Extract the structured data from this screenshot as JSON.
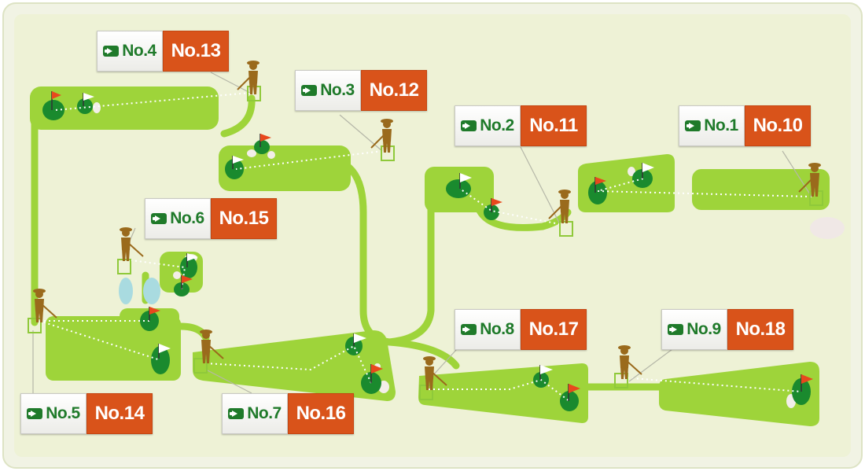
{
  "holes": [
    {
      "id": "hole-1",
      "front": "No.1",
      "back": "No.10"
    },
    {
      "id": "hole-2",
      "front": "No.2",
      "back": "No.11"
    },
    {
      "id": "hole-3",
      "front": "No.3",
      "back": "No.12"
    },
    {
      "id": "hole-4",
      "front": "No.4",
      "back": "No.13"
    },
    {
      "id": "hole-5",
      "front": "No.5",
      "back": "No.14"
    },
    {
      "id": "hole-6",
      "front": "No.6",
      "back": "No.15"
    },
    {
      "id": "hole-7",
      "front": "No.7",
      "back": "No.16"
    },
    {
      "id": "hole-8",
      "front": "No.8",
      "back": "No.17"
    },
    {
      "id": "hole-9",
      "front": "No.9",
      "back": "No.18"
    }
  ],
  "colors": {
    "background": "#eef2d6",
    "fairway": "#9ed43a",
    "green": "#1a8a2e",
    "golfer": "#9a6a1c",
    "front_label": "#1f7a2a",
    "back_label": "#d9531a",
    "flag_red": "#e8481d",
    "flag_white": "#ffffff",
    "bunker": "#f0ebe6",
    "water": "#a9dbe0"
  }
}
